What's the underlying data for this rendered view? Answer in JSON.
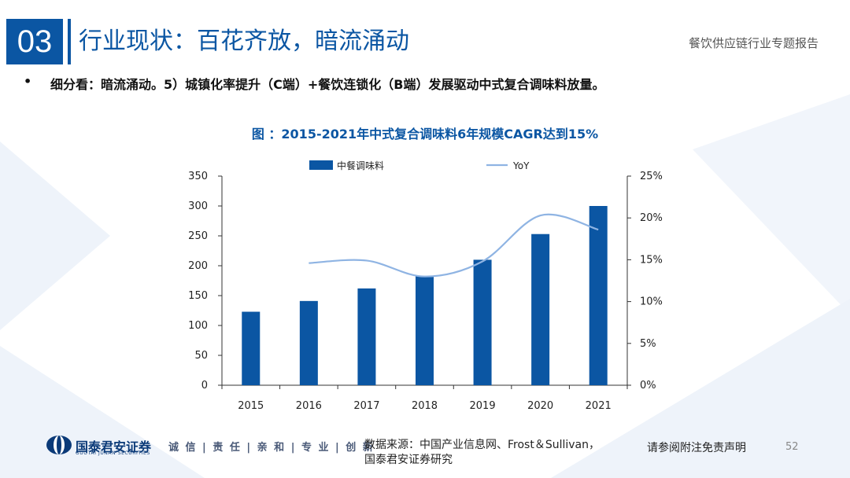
{
  "header": {
    "section_number": "03",
    "title": "行业现状：百花齐放，暗流涌动",
    "report_name": "餐饮供应链行业专题报告"
  },
  "subtitle": {
    "bullet": "•",
    "text": "细分看：暗流涌动。5）城镇化率提升（C端）+餐饮连锁化（B端）发展驱动中式复合调味料放量。"
  },
  "chart_data": {
    "type": "bar",
    "title": "图 ：2015-2021年中式复合调味料6年规模CAGR达到15%",
    "categories": [
      "2015",
      "2016",
      "2017",
      "2018",
      "2019",
      "2020",
      "2021"
    ],
    "series": [
      {
        "name": "中餐调味料",
        "type": "bar",
        "axis": "left",
        "color": "#0b56a3",
        "values": [
          123,
          141,
          162,
          183,
          210,
          253,
          300
        ]
      },
      {
        "name": "YoY",
        "type": "line",
        "axis": "right",
        "color": "#8fb4e3",
        "values": [
          null,
          0.146,
          0.149,
          0.13,
          0.148,
          0.203,
          0.186
        ]
      }
    ],
    "y_left": {
      "min": 0,
      "max": 350,
      "ticks": [
        "0",
        "50",
        "100",
        "150",
        "200",
        "250",
        "300",
        "350"
      ]
    },
    "y_right": {
      "min": 0,
      "max": 0.25,
      "ticks": [
        "0%",
        "5%",
        "10%",
        "15%",
        "20%",
        "25%"
      ]
    },
    "legend": [
      "中餐调味料",
      "YoY"
    ],
    "grid": false
  },
  "footer": {
    "logo_cn": "国泰君安证券",
    "logo_en": "GUOTAI JUNAN SECURITIES",
    "slogan": "诚 信 | 责 任 | 亲 和 | 专 业 | 创 新",
    "source_line1": "数据来源：中国产业信息网、Frost＆Sullivan，",
    "source_line2": "国泰君安证券研究",
    "disclaimer": "请参阅附注免责声明",
    "page": "52"
  }
}
